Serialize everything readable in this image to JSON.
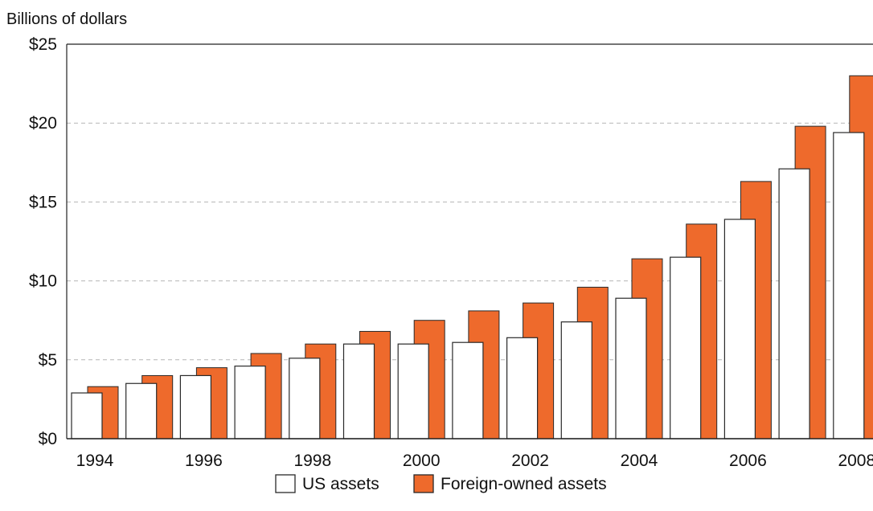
{
  "chart_data": {
    "type": "bar",
    "ylabel": "Billions of dollars",
    "xlabel": "",
    "ylim": [
      0,
      25
    ],
    "yticks": [
      0,
      5,
      10,
      15,
      20,
      25
    ],
    "ytick_labels": [
      "$0",
      "$5",
      "$10",
      "$15",
      "$20",
      "$25"
    ],
    "categories": [
      "1994",
      "1995",
      "1996",
      "1997",
      "1998",
      "1999",
      "2000",
      "2001",
      "2002",
      "2003",
      "2004",
      "2005",
      "2006",
      "2007",
      "2008"
    ],
    "xtick_labels": [
      "1994",
      "1996",
      "1998",
      "2000",
      "2002",
      "2004",
      "2006",
      "2008"
    ],
    "grid": true,
    "legend_position": "bottom-center",
    "series": [
      {
        "name": "US assets",
        "color": "#ffffff",
        "values": [
          2.9,
          3.5,
          4.0,
          4.6,
          5.1,
          6.0,
          6.0,
          6.1,
          6.4,
          7.4,
          8.9,
          11.5,
          13.9,
          17.1,
          19.4
        ]
      },
      {
        "name": "Foreign-owned assets",
        "color": "#ee6a2c",
        "values": [
          3.3,
          4.0,
          4.5,
          5.4,
          6.0,
          6.8,
          7.5,
          8.1,
          8.6,
          9.6,
          11.4,
          13.6,
          16.3,
          19.8,
          23.0
        ]
      }
    ]
  }
}
